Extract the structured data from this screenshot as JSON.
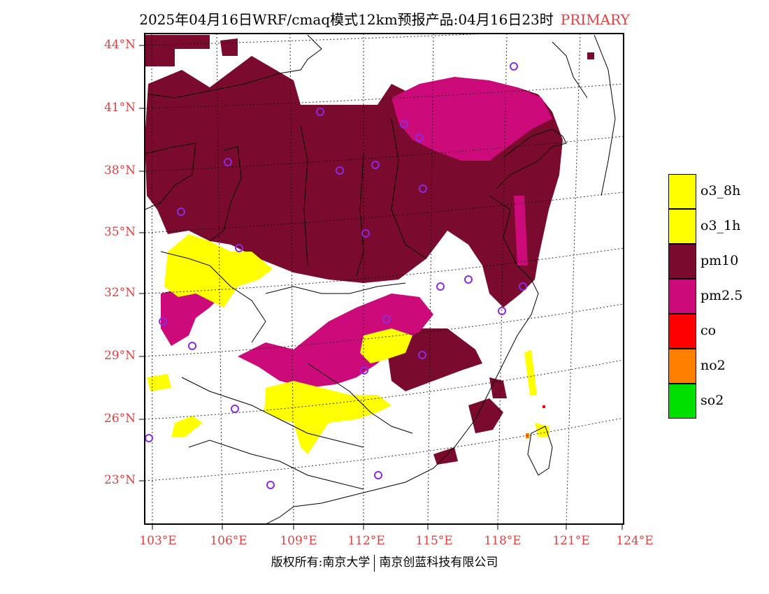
{
  "title": {
    "main": "2025年04月16日WRF/cmaq模式12km预报产品:04月16日23时",
    "tag": "PRIMARY"
  },
  "map": {
    "lat_labels": [
      "44°N",
      "41°N",
      "38°N",
      "35°N",
      "32°N",
      "29°N",
      "26°N",
      "23°N"
    ],
    "lon_labels": [
      "103°E",
      "106°E",
      "109°E",
      "112°E",
      "115°E",
      "118°E",
      "121°E",
      "124°E"
    ]
  },
  "legend": [
    {
      "label": "o3_8h",
      "color": "#ffff00"
    },
    {
      "label": "o3_1h",
      "color": "#ffff00"
    },
    {
      "label": "pm10",
      "color": "#7a0a2e"
    },
    {
      "label": "pm2.5",
      "color": "#cc0a7a"
    },
    {
      "label": "co",
      "color": "#ff0000"
    },
    {
      "label": "no2",
      "color": "#ff8000"
    },
    {
      "label": "so2",
      "color": "#00e000"
    }
  ],
  "footer": {
    "left": "版权所有:南京大学",
    "right": "南京创蓝科技有限公司"
  }
}
